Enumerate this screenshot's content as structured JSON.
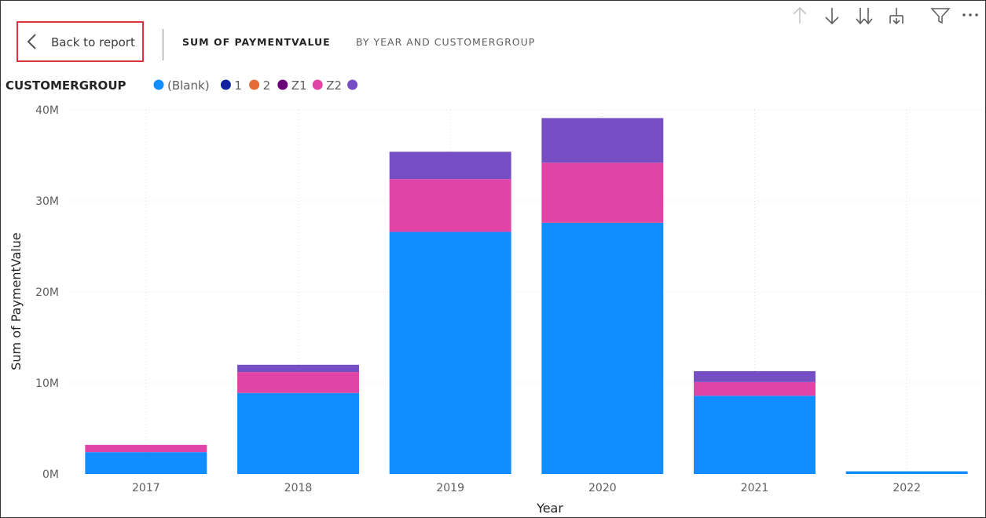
{
  "header": {
    "back_label": "Back to report",
    "title": "SUM OF PAYMENTVALUE",
    "subtitle": "BY YEAR AND CUSTOMERGROUP"
  },
  "toolbar": {
    "icons": [
      "arrow-up-icon",
      "arrow-down-icon",
      "double-arrow-down-icon",
      "expand-hierarchy-icon",
      "filter-icon",
      "more-options-icon"
    ]
  },
  "chart_data": {
    "type": "bar",
    "stacked": true,
    "legend_title": "CUSTOMERGROUP",
    "legend_position": "top-left",
    "categories": [
      "2017",
      "2018",
      "2019",
      "2020",
      "2021",
      "2022"
    ],
    "series": [
      {
        "name": "(Blank)",
        "color": "#118DFF",
        "values": [
          2.4,
          8.9,
          26.6,
          27.6,
          8.6,
          0.3
        ]
      },
      {
        "name": "1",
        "color": "#12239E",
        "values": [
          0,
          0,
          0,
          0,
          0,
          0
        ]
      },
      {
        "name": "2",
        "color": "#E66C37",
        "values": [
          0,
          0,
          0,
          0,
          0,
          0
        ]
      },
      {
        "name": "Z1",
        "color": "#6B007B",
        "values": [
          0,
          0,
          0,
          0,
          0,
          0
        ]
      },
      {
        "name": "Z2",
        "color": "#E044A7",
        "values": [
          0.8,
          2.3,
          5.8,
          6.6,
          1.5,
          0
        ]
      },
      {
        "name": "",
        "color": "#744EC2",
        "values": [
          0,
          0.8,
          3.0,
          4.9,
          1.2,
          0
        ]
      }
    ],
    "legend_items": [
      {
        "label": "(Blank)",
        "color": "#118DFF"
      },
      {
        "label": "1",
        "color": "#12239E"
      },
      {
        "label": "2",
        "color": "#E66C37"
      },
      {
        "label": "Z1",
        "color": "#6B007B"
      },
      {
        "label": "Z2",
        "color": "#E044A7"
      },
      {
        "label": "",
        "color": "#744EC2"
      }
    ],
    "xlabel": "Year",
    "ylabel": "Sum of PaymentValue",
    "ylim": [
      0,
      40
    ],
    "yticks": [
      {
        "value": 0,
        "label": "0M"
      },
      {
        "value": 10,
        "label": "10M"
      },
      {
        "value": 20,
        "label": "20M"
      },
      {
        "value": 30,
        "label": "30M"
      },
      {
        "value": 40,
        "label": "40M"
      }
    ],
    "grid": true,
    "unit": "M"
  }
}
